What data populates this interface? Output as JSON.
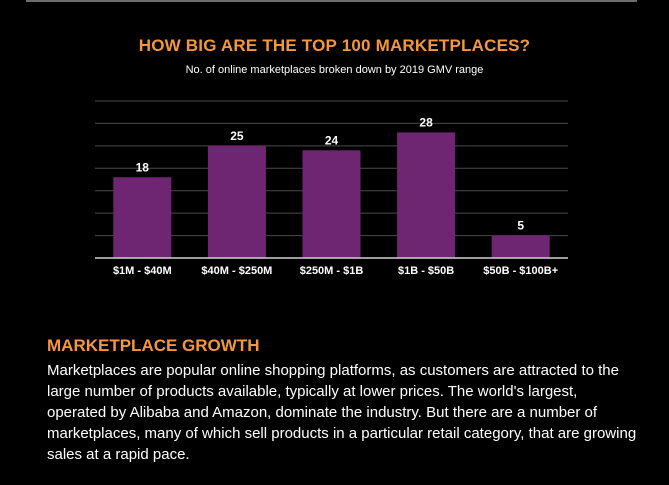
{
  "chart": {
    "title": "HOW BIG ARE THE TOP 100 MARKETPLACES?",
    "subtitle": "No. of  online marketplaces  broken down by 2019 GMV range"
  },
  "chart_data": {
    "type": "bar",
    "title": "HOW BIG ARE THE TOP 100 MARKETPLACES?",
    "subtitle": "No. of  online marketplaces  broken down by 2019 GMV range",
    "categories": [
      "$1M - $40M",
      "$40M - $250M",
      "$250M - $1B",
      "$1B - $50B",
      "$50B - $100B+"
    ],
    "values": [
      18,
      25,
      24,
      28,
      5
    ],
    "data_labels": [
      "18",
      "25",
      "24",
      "28",
      "5"
    ],
    "xlabel": "",
    "ylabel": "",
    "ylim": [
      0,
      35
    ],
    "grid": true,
    "legend": "none",
    "bar_color": "#6e2672",
    "grid_color": "#4a4a4a",
    "axis_color": "#d0d0d0"
  },
  "section": {
    "heading": "MARKETPLACE GROWTH",
    "body": "Marketplaces are popular online shopping platforms, as customers are attracted to the large number of products available, typically at lower prices. The world's largest, operated by Alibaba and Amazon, dominate the industry. But there are a number of marketplaces, many of which sell products in a particular retail category, that are growing sales at a rapid pace."
  },
  "colors": {
    "background": "#000000",
    "accent": "#f5963c",
    "text": "#ffffff"
  }
}
